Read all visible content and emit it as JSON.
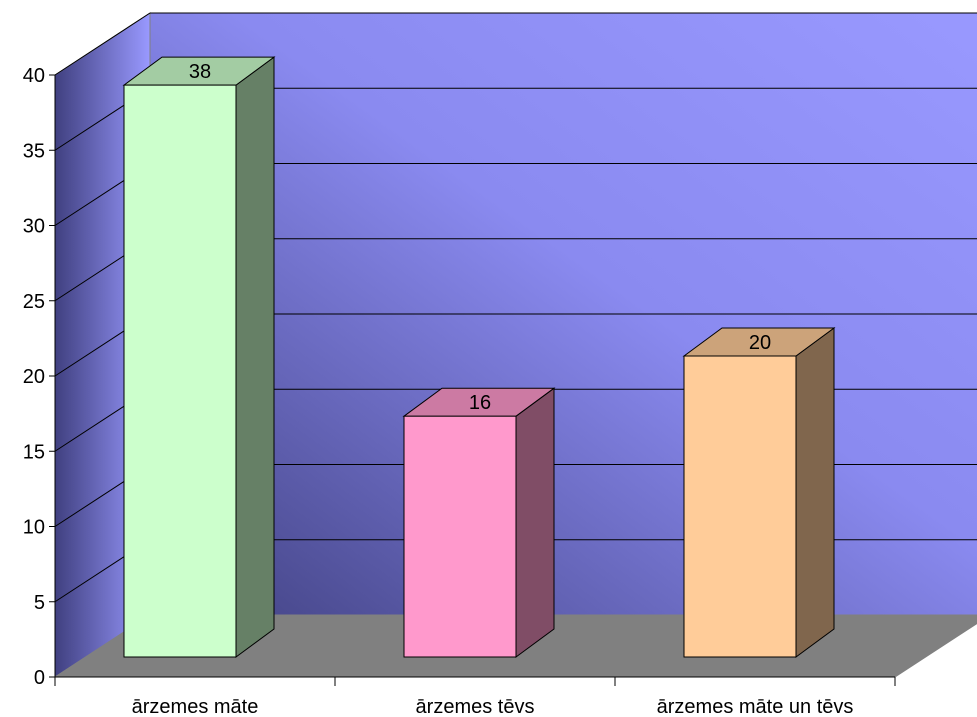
{
  "chart_data": {
    "type": "bar",
    "categories": [
      "ārzemes māte",
      "ārzemes tēvs",
      "ārzemes māte un tēvs"
    ],
    "values": [
      38,
      16,
      20
    ],
    "ylim": [
      0,
      40
    ],
    "yticks": [
      0,
      5,
      10,
      15,
      20,
      25,
      30,
      35,
      40
    ],
    "grid": true,
    "legend": "none",
    "bar_colors": [
      {
        "front": "#ccffcc",
        "top": "#a3cca3",
        "side": "#668066"
      },
      {
        "front": "#ff99cc",
        "top": "#cc7aa3",
        "side": "#804d66"
      },
      {
        "front": "#ffcc99",
        "top": "#cca37a",
        "side": "#80664d"
      }
    ],
    "back_wall_gradient": [
      "#404080",
      "#9999ff"
    ],
    "side_wall_gradient": [
      "#404080",
      "#9999ff"
    ],
    "floor_color": "#808080"
  }
}
